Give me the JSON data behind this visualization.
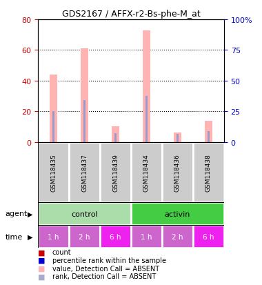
{
  "title": "GDS2167 / AFFX-r2-Bs-phe-M_at",
  "samples": [
    "GSM118435",
    "GSM118437",
    "GSM118439",
    "GSM118434",
    "GSM118436",
    "GSM118438"
  ],
  "agent_labels": [
    "control",
    "activin"
  ],
  "time_labels": [
    "1 h",
    "2 h",
    "6 h",
    "1 h",
    "2 h",
    "6 h"
  ],
  "pink_bar_heights": [
    44,
    61,
    10.5,
    73,
    6.5,
    14
  ],
  "blue_bar_heights": [
    20,
    27.5,
    6,
    30,
    5.5,
    7
  ],
  "pink_bar_color": "#ffb3b3",
  "blue_bar_color": "#9999cc",
  "ylim_left": [
    0,
    80
  ],
  "ylim_right": [
    0,
    100
  ],
  "yticks_left": [
    0,
    20,
    40,
    60,
    80
  ],
  "yticks_right": [
    0,
    25,
    50,
    75,
    100
  ],
  "yticklabels_right": [
    "0",
    "25",
    "50",
    "75",
    "100%"
  ],
  "left_tick_color": "#cc0000",
  "right_tick_color": "#0000cc",
  "agent_bg_control": "#aaddaa",
  "agent_bg_activin": "#44cc44",
  "time_colors": [
    "#cc66cc",
    "#cc66cc",
    "#ee22ee",
    "#cc66cc",
    "#cc66cc",
    "#ee22ee"
  ],
  "sample_bg": "#cccccc",
  "legend_colors": [
    "#cc0000",
    "#0000cc",
    "#ffb3b3",
    "#aaaacc"
  ],
  "legend_labels": [
    "count",
    "percentile rank within the sample",
    "value, Detection Call = ABSENT",
    "rank, Detection Call = ABSENT"
  ]
}
